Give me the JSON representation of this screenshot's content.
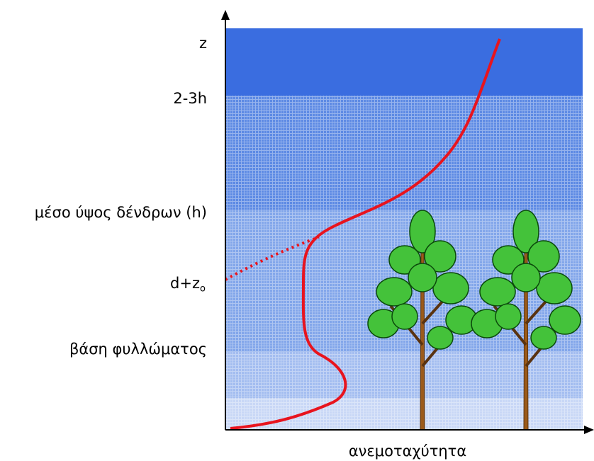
{
  "labels": [
    {
      "text": "z"
    },
    {
      "text": "2-3h"
    },
    {
      "text": "μέσο ύψος δένδρων (h)"
    },
    {
      "text": "d+z",
      "subscript": "o"
    },
    {
      "text": "βάση φυλλώματος"
    }
  ],
  "x_axis_label": "ανεμοταχύτητα"
}
